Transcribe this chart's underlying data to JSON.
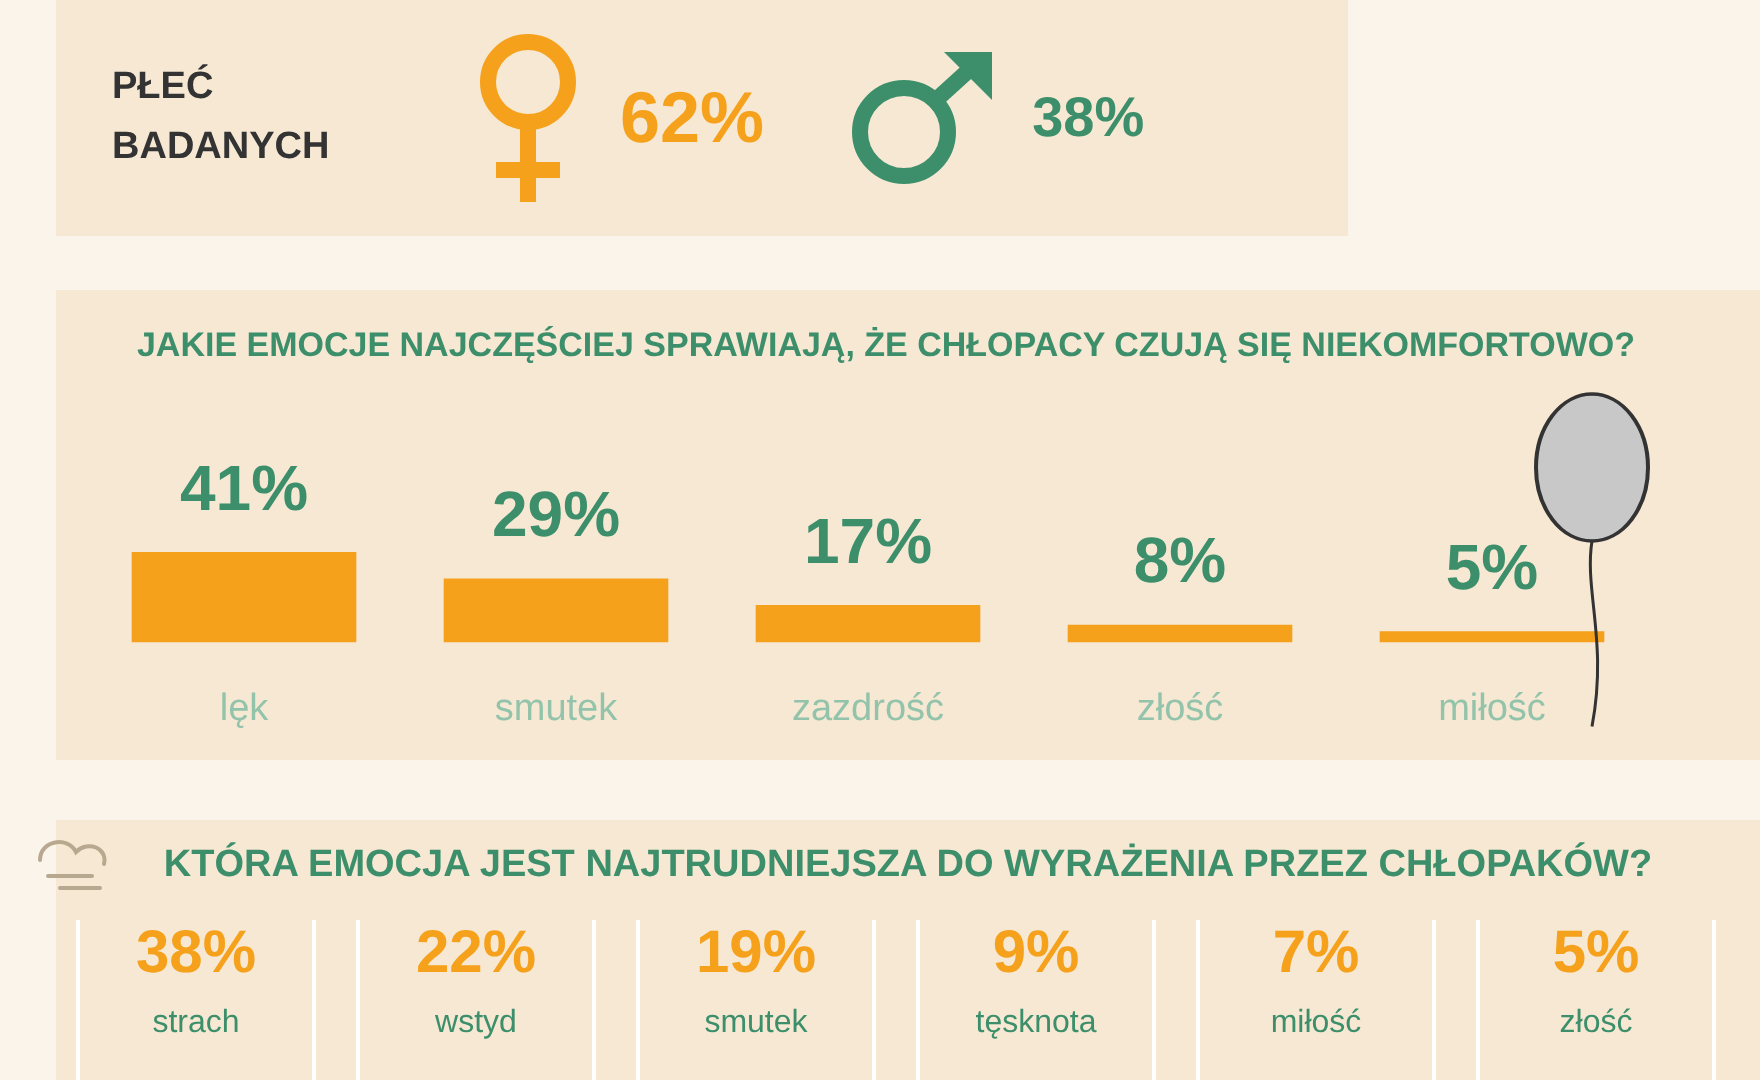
{
  "chart_data": [
    {
      "type": "other",
      "title": "PŁEĆ BADANYCH",
      "categories": [
        null,
        null
      ],
      "values": [
        62,
        38
      ],
      "colors": [
        "#f5a11c",
        "#3d8f6b"
      ],
      "value_labels": [
        "62%",
        "38%"
      ]
    },
    {
      "type": "bar",
      "title": "JAKIE EMOCJE NAJCZĘŚCIEJ SPRAWIAJĄ, ŻE CHŁOPACY CZUJĄ SIĘ NIEKOMFORTOWO?",
      "categories": [
        "lęk",
        "smutek",
        "zazdrość",
        "złość",
        "miłość"
      ],
      "values": [
        41,
        29,
        17,
        8,
        5
      ],
      "color": "#f5a11c",
      "value_labels": [
        "41%",
        "29%",
        "17%",
        "8%",
        "5%"
      ]
    },
    {
      "type": "other",
      "title": "KTÓRA EMOCJA JEST NAJTRUDNIEJSZA DO WYRAŻENIA PRZEZ CHŁOPAKÓW?",
      "categories": [
        "strach",
        "wstyd",
        "smutek",
        "tęsknota",
        "miłość",
        "złość"
      ],
      "values": [
        38,
        22,
        19,
        9,
        7,
        5
      ],
      "value_labels": [
        "38%",
        "22%",
        "19%",
        "9%",
        "7%",
        "5%"
      ]
    }
  ]
}
